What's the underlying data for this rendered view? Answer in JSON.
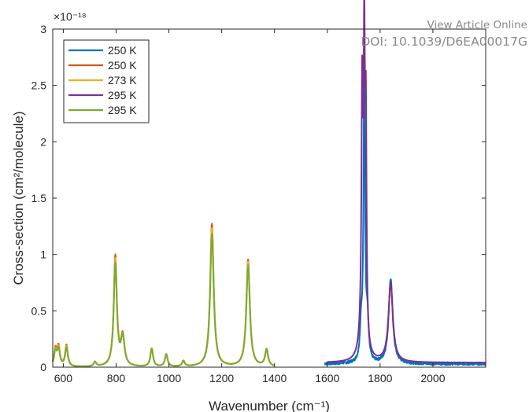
{
  "overlay": {
    "line1": "View Article Online",
    "line2": "DOI: 10.1039/D6EA00017G"
  },
  "chart_data": {
    "type": "line",
    "title": "",
    "xlabel": "Wavenumber (cm⁻¹)",
    "ylabel": "Cross-section (cm²/molecule)",
    "y_exponent_label": "×10⁻¹⁸",
    "xlim": [
      560,
      2200
    ],
    "ylim": [
      0,
      3
    ],
    "x_ticks": [
      600,
      800,
      1000,
      1200,
      1400,
      1600,
      1800,
      2000
    ],
    "y_ticks": [
      0,
      0.5,
      1,
      1.5,
      2,
      2.5,
      3
    ],
    "y_tick_labels": [
      "0",
      "0.5",
      "1",
      "1.5",
      "2",
      "2.5",
      "3"
    ],
    "legend_position": "top-left",
    "grid": false,
    "series": [
      {
        "name": "250 K",
        "color": "#0072bd",
        "x_range": [
          1590,
          2200
        ],
        "baseline": 0.03,
        "noise": 0.025,
        "peaks": [
          {
            "x": 1728,
            "height": 0.3,
            "width": 5
          },
          {
            "x": 1740,
            "height": 2.62,
            "width": 3.5
          },
          {
            "x": 1752,
            "height": 0.35,
            "width": 5
          },
          {
            "x": 1840,
            "height": 0.75,
            "width": 9
          }
        ]
      },
      {
        "name": "250 K",
        "color": "#d95319",
        "x_range": [
          560,
          1400
        ],
        "baseline": 0,
        "noise": 0,
        "peaks": [
          {
            "x": 570,
            "height": 0.15,
            "width": 6
          },
          {
            "x": 582,
            "height": 0.17,
            "width": 6
          },
          {
            "x": 612,
            "height": 0.19,
            "width": 6
          },
          {
            "x": 720,
            "height": 0.04,
            "width": 6
          },
          {
            "x": 797,
            "height": 0.98,
            "width": 7
          },
          {
            "x": 825,
            "height": 0.26,
            "width": 8
          },
          {
            "x": 935,
            "height": 0.16,
            "width": 6
          },
          {
            "x": 990,
            "height": 0.11,
            "width": 6
          },
          {
            "x": 1055,
            "height": 0.05,
            "width": 6
          },
          {
            "x": 1163,
            "height": 1.27,
            "width": 8
          },
          {
            "x": 1300,
            "height": 0.95,
            "width": 8
          },
          {
            "x": 1370,
            "height": 0.15,
            "width": 7
          }
        ]
      },
      {
        "name": "273 K",
        "color": "#edb120",
        "x_range": [
          560,
          1400
        ],
        "baseline": 0,
        "noise": 0,
        "peaks": [
          {
            "x": 570,
            "height": 0.14,
            "width": 6
          },
          {
            "x": 582,
            "height": 0.16,
            "width": 6
          },
          {
            "x": 612,
            "height": 0.18,
            "width": 6
          },
          {
            "x": 720,
            "height": 0.04,
            "width": 6
          },
          {
            "x": 797,
            "height": 0.95,
            "width": 7
          },
          {
            "x": 825,
            "height": 0.25,
            "width": 8
          },
          {
            "x": 935,
            "height": 0.16,
            "width": 6
          },
          {
            "x": 990,
            "height": 0.11,
            "width": 6
          },
          {
            "x": 1055,
            "height": 0.05,
            "width": 6
          },
          {
            "x": 1163,
            "height": 1.23,
            "width": 8
          },
          {
            "x": 1300,
            "height": 0.93,
            "width": 8
          },
          {
            "x": 1370,
            "height": 0.15,
            "width": 7
          }
        ]
      },
      {
        "name": "295 K",
        "color": "#7e2f8e",
        "x_range": [
          1600,
          2200
        ],
        "baseline": 0.04,
        "noise": 0,
        "peaks": [
          {
            "x": 1732,
            "height": 1.85,
            "width": 3
          },
          {
            "x": 1740,
            "height": 2.3,
            "width": 2.8
          },
          {
            "x": 1746,
            "height": 1.85,
            "width": 3
          },
          {
            "x": 1735,
            "height": 0.6,
            "width": 9
          },
          {
            "x": 1840,
            "height": 0.7,
            "width": 10
          }
        ]
      },
      {
        "name": "295 K",
        "color": "#77ac30",
        "x_range": [
          560,
          1400
        ],
        "baseline": 0,
        "noise": 0,
        "peaks": [
          {
            "x": 570,
            "height": 0.13,
            "width": 6
          },
          {
            "x": 582,
            "height": 0.15,
            "width": 6
          },
          {
            "x": 612,
            "height": 0.17,
            "width": 6
          },
          {
            "x": 720,
            "height": 0.04,
            "width": 6
          },
          {
            "x": 797,
            "height": 0.91,
            "width": 7
          },
          {
            "x": 825,
            "height": 0.25,
            "width": 8
          },
          {
            "x": 935,
            "height": 0.16,
            "width": 6
          },
          {
            "x": 990,
            "height": 0.11,
            "width": 6
          },
          {
            "x": 1055,
            "height": 0.05,
            "width": 6
          },
          {
            "x": 1163,
            "height": 1.18,
            "width": 8
          },
          {
            "x": 1300,
            "height": 0.9,
            "width": 8
          },
          {
            "x": 1370,
            "height": 0.15,
            "width": 7
          }
        ]
      }
    ]
  }
}
